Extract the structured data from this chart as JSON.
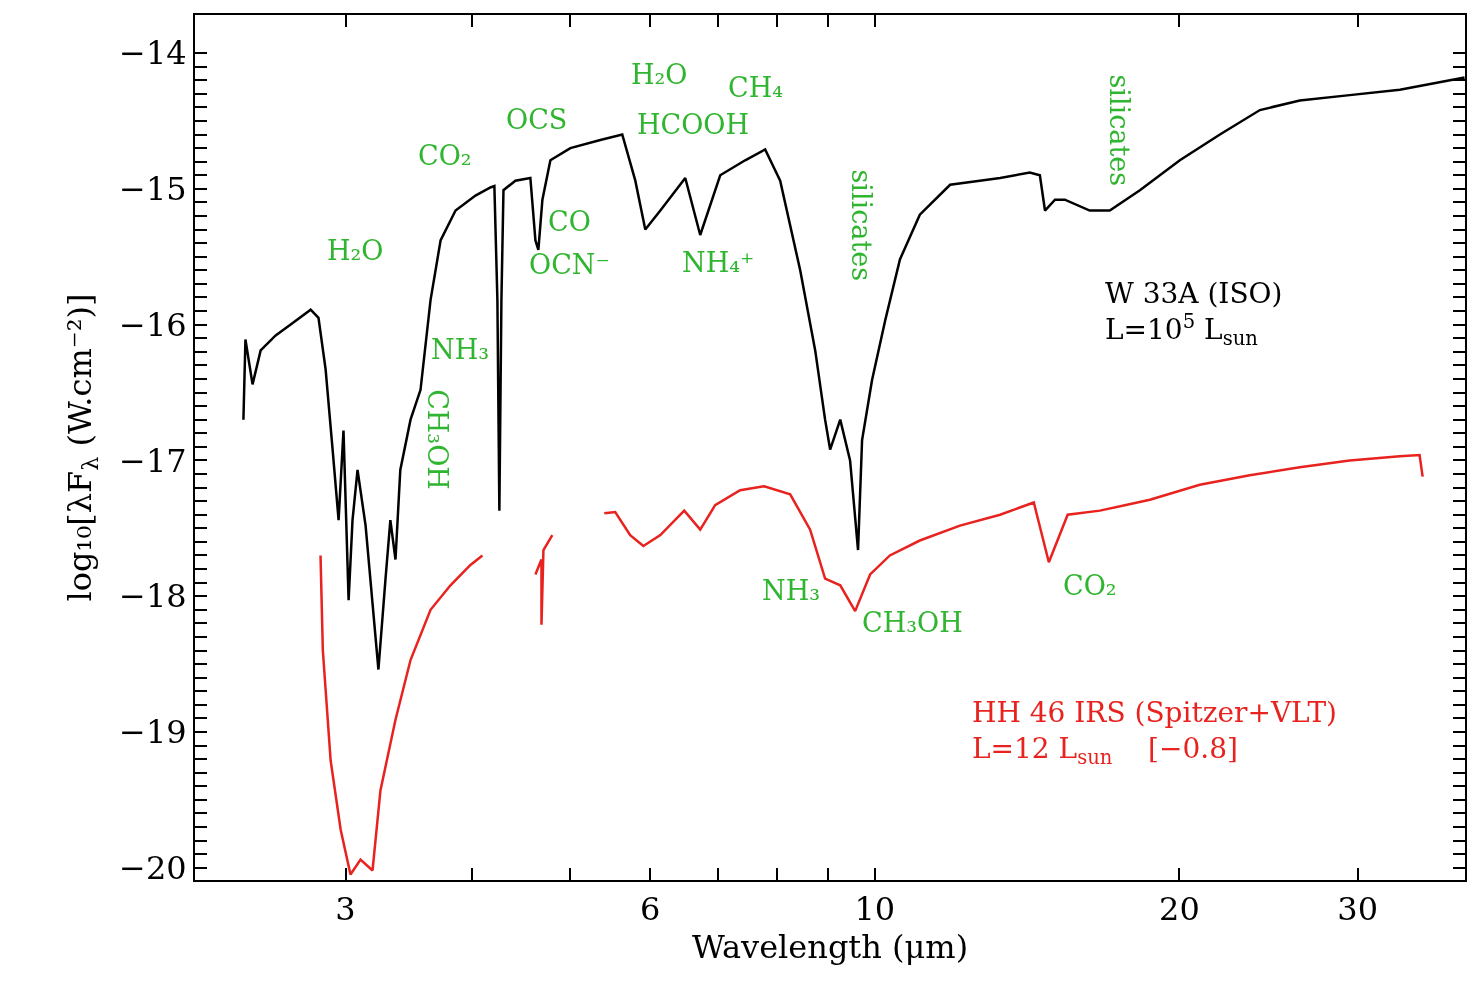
{
  "chart_data": {
    "type": "line",
    "xlabel": "Wavelength (μm)",
    "ylabel": "log₁₀[λF$_{λ}$ (W.cm⁻²)]",
    "log": "x",
    "grid": false,
    "legend": false,
    "marker": "none",
    "line_style": "solid",
    "xlim": [
      2.13,
      38.3
    ],
    "ylim": [
      -20.09,
      -13.72
    ],
    "xticks": [
      3,
      {
        "value": 4,
        "label": null
      },
      {
        "value": 5,
        "label": null
      },
      6,
      {
        "value": 7,
        "label": null
      },
      {
        "value": 8,
        "label": null
      },
      {
        "value": 9,
        "label": null
      },
      10,
      20,
      30
    ],
    "yticks": [
      -20,
      -19,
      -18,
      -17,
      -16,
      -15,
      -14,
      {
        "value": -19.9,
        "label": null
      },
      {
        "value": -19.8,
        "label": null
      },
      {
        "value": -19.7,
        "label": null
      },
      {
        "value": -19.6,
        "label": null
      },
      {
        "value": -19.5,
        "label": null
      },
      {
        "value": -19.4,
        "label": null
      },
      {
        "value": -19.3,
        "label": null
      },
      {
        "value": -19.2,
        "label": null
      },
      {
        "value": -19.1,
        "label": null
      },
      {
        "value": -18.9,
        "label": null
      },
      {
        "value": -18.8,
        "label": null
      },
      {
        "value": -18.7,
        "label": null
      },
      {
        "value": -18.6,
        "label": null
      },
      {
        "value": -18.5,
        "label": null
      },
      {
        "value": -18.4,
        "label": null
      },
      {
        "value": -18.3,
        "label": null
      },
      {
        "value": -18.2,
        "label": null
      },
      {
        "value": -18.1,
        "label": null
      },
      {
        "value": -17.9,
        "label": null
      },
      {
        "value": -17.8,
        "label": null
      },
      {
        "value": -17.7,
        "label": null
      },
      {
        "value": -17.6,
        "label": null
      },
      {
        "value": -17.5,
        "label": null
      },
      {
        "value": -17.4,
        "label": null
      },
      {
        "value": -17.3,
        "label": null
      },
      {
        "value": -17.2,
        "label": null
      },
      {
        "value": -17.1,
        "label": null
      },
      {
        "value": -16.9,
        "label": null
      },
      {
        "value": -16.8,
        "label": null
      },
      {
        "value": -16.7,
        "label": null
      },
      {
        "value": -16.6,
        "label": null
      },
      {
        "value": -16.5,
        "label": null
      },
      {
        "value": -16.4,
        "label": null
      },
      {
        "value": -16.3,
        "label": null
      },
      {
        "value": -16.2,
        "label": null
      },
      {
        "value": -16.1,
        "label": null
      },
      {
        "value": -15.9,
        "label": null
      },
      {
        "value": -15.8,
        "label": null
      },
      {
        "value": -15.7,
        "label": null
      },
      {
        "value": -15.6,
        "label": null
      },
      {
        "value": -15.5,
        "label": null
      },
      {
        "value": -15.4,
        "label": null
      },
      {
        "value": -15.3,
        "label": null
      },
      {
        "value": -15.2,
        "label": null
      },
      {
        "value": -15.1,
        "label": null
      },
      {
        "value": -14.9,
        "label": null
      },
      {
        "value": -14.8,
        "label": null
      },
      {
        "value": -14.7,
        "label": null
      },
      {
        "value": -14.6,
        "label": null
      },
      {
        "value": -14.5,
        "label": null
      },
      {
        "value": -14.4,
        "label": null
      },
      {
        "value": -14.3,
        "label": null
      },
      {
        "value": -14.2,
        "label": null
      },
      {
        "value": -14.1,
        "label": null
      }
    ],
    "series": [
      {
        "name": "W 33A (ISO)\nL=10$^{5}$ L$_{sun}$",
        "color": "#000000",
        "x": [
          2.378,
          2.389,
          2.428,
          2.473,
          2.559,
          2.648,
          2.771,
          2.821,
          2.867,
          2.913,
          2.953,
          2.986,
          3.021,
          3.048,
          3.083,
          3.14,
          3.233,
          3.285,
          3.322,
          3.361,
          3.398,
          3.478,
          3.558,
          3.64,
          3.724,
          3.853,
          4.032,
          4.171,
          4.209,
          4.238,
          4.257,
          4.277,
          4.297,
          4.415,
          4.568,
          4.621,
          4.652,
          4.695,
          4.781,
          5.003,
          5.356,
          5.63,
          5.8,
          5.933,
          6.14,
          6.498,
          6.723,
          7.036,
          7.447,
          7.793,
          8.064,
          8.44,
          8.733,
          8.932,
          9.035,
          9.245,
          9.454,
          9.627,
          9.716,
          9.938,
          10.24,
          10.59,
          11.08,
          11.87,
          12.7,
          13.3,
          14.23,
          14.56,
          14.73,
          15.07,
          15.41,
          16.31,
          17.07,
          18.28,
          20.02,
          21.93,
          24.02,
          26.3,
          29.46,
          33.02,
          38.26
        ],
        "values": [
          -16.7,
          -16.11,
          -16.44,
          -16.19,
          -16.08,
          -16.0,
          -15.89,
          -15.95,
          -16.33,
          -16.92,
          -17.44,
          -16.78,
          -18.03,
          -17.44,
          -17.07,
          -17.48,
          -18.54,
          -17.88,
          -17.44,
          -17.73,
          -17.07,
          -16.7,
          -16.48,
          -15.82,
          -15.38,
          -15.16,
          -15.05,
          -14.99,
          -14.98,
          -15.82,
          -17.37,
          -15.82,
          -15.01,
          -14.94,
          -14.92,
          -15.38,
          -15.45,
          -15.08,
          -14.79,
          -14.7,
          -14.64,
          -14.6,
          -14.94,
          -15.3,
          -15.16,
          -14.92,
          -15.34,
          -14.9,
          -14.79,
          -14.71,
          -14.94,
          -15.6,
          -16.19,
          -16.7,
          -16.92,
          -16.7,
          -17.0,
          -17.66,
          -16.85,
          -16.41,
          -15.97,
          -15.52,
          -15.19,
          -14.97,
          -14.94,
          -14.92,
          -14.88,
          -14.9,
          -15.16,
          -15.08,
          -15.08,
          -15.16,
          -15.16,
          -15.01,
          -14.79,
          -14.6,
          -14.42,
          -14.35,
          -14.31,
          -14.27,
          -14.18
        ]
      },
      {
        "name": "HH 46 IRS (Spitzer+VLT)\nL=12 L$_{sun}$    [−0.8]",
        "color": "#e8221e",
        "x": [
          2.834,
          2.849,
          2.9,
          2.967,
          3.034,
          3.104,
          3.19,
          3.248,
          3.361,
          3.478,
          3.64,
          3.809,
          3.986,
          4.096,
          4.3,
          4.621,
          4.685,
          4.685,
          4.706,
          4.802,
          5.1,
          5.405,
          5.541,
          5.733,
          5.907,
          6.14,
          6.483,
          6.723,
          6.955,
          7.362,
          7.776,
          8.25,
          8.633,
          8.932,
          9.245,
          9.564,
          9.895,
          10.35,
          11.08,
          12.14,
          13.3,
          14.36,
          14.86,
          15.51,
          16.69,
          18.7,
          20.95,
          23.47,
          26.3,
          29.46,
          33.02,
          34.54,
          34.78
        ],
        "values": [
          -17.7,
          -18.4,
          -19.21,
          -19.72,
          -20.05,
          -19.94,
          -20.02,
          -19.43,
          -18.91,
          -18.47,
          -18.1,
          -17.92,
          -17.77,
          -17.7,
          null,
          -17.84,
          -17.73,
          -18.21,
          -17.66,
          -17.55,
          null,
          -17.39,
          -17.38,
          -17.55,
          -17.63,
          -17.55,
          -17.37,
          -17.51,
          -17.33,
          -17.22,
          -17.19,
          -17.25,
          -17.51,
          -17.87,
          -17.92,
          -18.11,
          -17.84,
          -17.7,
          -17.59,
          -17.48,
          -17.4,
          -17.31,
          -17.75,
          -17.4,
          -17.37,
          -17.29,
          -17.18,
          -17.11,
          -17.05,
          -17.0,
          -16.97,
          -16.96,
          -17.12
        ]
      }
    ],
    "annotations": [
      "H₂O",
      "CO₂",
      "NH₃",
      "CH₃OH",
      "OCS",
      "CO",
      "OCN⁻",
      "H₂O",
      "HCOOH",
      "CH₄",
      "NH₄⁺",
      "silicates",
      "silicates",
      "NH₃",
      "CH₃OH",
      "CO₂"
    ]
  }
}
